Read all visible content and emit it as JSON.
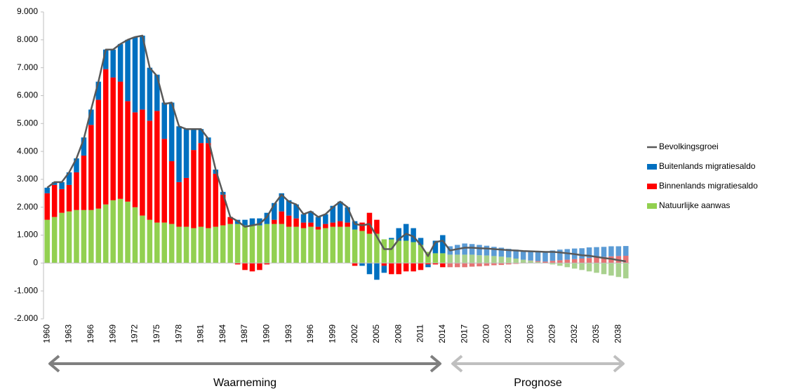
{
  "chart_data": {
    "type": "bar",
    "stacked": true,
    "categories": [
      "1960",
      null,
      null,
      "1963",
      null,
      null,
      "1966",
      null,
      null,
      "1969",
      null,
      null,
      "1972",
      null,
      null,
      "1975",
      null,
      null,
      "1978",
      null,
      null,
      "1981",
      null,
      null,
      "1984",
      null,
      null,
      "1987",
      null,
      null,
      "1990",
      null,
      null,
      "1993",
      null,
      null,
      "1996",
      null,
      null,
      "1999",
      null,
      null,
      "2002",
      null,
      null,
      "2005",
      null,
      null,
      "2008",
      null,
      null,
      "2011",
      null,
      null,
      "2014",
      null,
      null,
      "2017",
      null,
      null,
      "2020",
      null,
      null,
      "2023",
      null,
      null,
      "2026",
      null,
      null,
      "2029",
      null,
      null,
      "2032",
      null,
      null,
      "2035",
      null,
      null,
      "2038",
      null
    ],
    "series": [
      {
        "name": "Natuurlijke aanwas",
        "type": "bar",
        "color": "#92d050",
        "projection_color": "#a9d18e",
        "values": [
          1550,
          1650,
          1800,
          1850,
          1900,
          1900,
          1900,
          1950,
          2100,
          2250,
          2300,
          2200,
          2000,
          1700,
          1550,
          1450,
          1450,
          1400,
          1300,
          1300,
          1250,
          1300,
          1250,
          1300,
          1350,
          1400,
          1400,
          1350,
          1350,
          1350,
          1400,
          1400,
          1400,
          1300,
          1300,
          1250,
          1300,
          1200,
          1250,
          1300,
          1300,
          1300,
          1200,
          1150,
          1050,
          1050,
          850,
          850,
          800,
          800,
          750,
          650,
          400,
          350,
          350,
          300,
          300,
          300,
          300,
          280,
          270,
          250,
          230,
          200,
          160,
          120,
          80,
          40,
          0,
          -50,
          -100,
          -150,
          -200,
          -250,
          -300,
          -350,
          -400,
          -450,
          -500,
          -550
        ]
      },
      {
        "name": "Binnenlands migratiesaldo",
        "type": "bar",
        "color": "#ff0000",
        "projection_color": "#e57373",
        "values": [
          950,
          1150,
          850,
          950,
          1350,
          1950,
          3050,
          3900,
          4850,
          4400,
          4200,
          3600,
          3400,
          3800,
          3550,
          4000,
          3000,
          2250,
          1600,
          1750,
          2800,
          3000,
          3050,
          1900,
          1100,
          250,
          -50,
          -250,
          -300,
          -250,
          -50,
          150,
          450,
          400,
          300,
          200,
          150,
          100,
          150,
          150,
          200,
          150,
          -100,
          300,
          750,
          500,
          -100,
          -400,
          -400,
          -300,
          -300,
          -250,
          -50,
          -50,
          -150,
          -150,
          -150,
          -150,
          -130,
          -120,
          -100,
          -80,
          -70,
          -50,
          -30,
          -10,
          10,
          30,
          50,
          80,
          100,
          120,
          140,
          160,
          180,
          200,
          220,
          240,
          250,
          260
        ]
      },
      {
        "name": "Buitenlands migratiesaldo",
        "type": "bar",
        "color": "#0070c0",
        "projection_color": "#5b9bd5",
        "values": [
          200,
          100,
          250,
          450,
          500,
          650,
          550,
          650,
          700,
          1000,
          1350,
          2200,
          2700,
          2650,
          1900,
          1300,
          1300,
          2100,
          2000,
          1750,
          750,
          500,
          200,
          150,
          100,
          0,
          150,
          200,
          250,
          250,
          400,
          600,
          650,
          550,
          500,
          300,
          400,
          350,
          350,
          600,
          700,
          550,
          300,
          -100,
          -400,
          -600,
          -250,
          50,
          450,
          600,
          500,
          250,
          -100,
          450,
          650,
          300,
          350,
          400,
          380,
          370,
          350,
          330,
          320,
          310,
          320,
          320,
          330,
          340,
          350,
          370,
          380,
          380,
          380,
          370,
          380,
          370,
          360,
          360,
          350,
          350
        ]
      },
      {
        "name": "Bevolkingsgroei",
        "type": "line",
        "color": "#595959",
        "values": [
          2700,
          2900,
          2900,
          3250,
          3750,
          4450,
          5500,
          6500,
          7650,
          7650,
          7850,
          8000,
          8100,
          8150,
          7000,
          6700,
          5700,
          5750,
          4900,
          4800,
          4800,
          4800,
          4450,
          3350,
          2500,
          1650,
          1500,
          1300,
          1350,
          1400,
          1650,
          2100,
          2450,
          2200,
          2100,
          1750,
          1850,
          1650,
          1750,
          2000,
          2200,
          2000,
          1400,
          1350,
          1400,
          950,
          500,
          500,
          850,
          1050,
          950,
          650,
          250,
          750,
          800,
          450,
          500,
          550,
          550,
          530,
          520,
          500,
          480,
          460,
          450,
          430,
          420,
          410,
          400,
          400,
          380,
          350,
          320,
          280,
          260,
          220,
          180,
          150,
          100,
          60
        ]
      }
    ],
    "ylim": [
      -2000,
      9000
    ],
    "yticks": [
      {
        "value": -2000,
        "label": "-2.000"
      },
      {
        "value": -1000,
        "label": "-1.000"
      },
      0,
      {
        "value": 1000,
        "label": "1.000"
      },
      {
        "value": 2000,
        "label": "2.000"
      },
      {
        "value": 3000,
        "label": "3.000"
      },
      {
        "value": 4000,
        "label": "4.000"
      },
      {
        "value": 5000,
        "label": "5.000"
      },
      {
        "value": 6000,
        "label": "6.000"
      },
      {
        "value": 7000,
        "label": "7.000"
      },
      {
        "value": 8000,
        "label": "8.000"
      },
      {
        "value": 9000,
        "label": "9.000"
      }
    ],
    "grid": false,
    "legend": "right",
    "annotations": [
      {
        "text": "Waarneming",
        "from": 0,
        "to": 54,
        "color": "#7f7f7f",
        "projected": false
      },
      {
        "text": "Prognose",
        "from": 55,
        "to": 79,
        "color": "#bfbfbf",
        "projected": true
      }
    ]
  }
}
